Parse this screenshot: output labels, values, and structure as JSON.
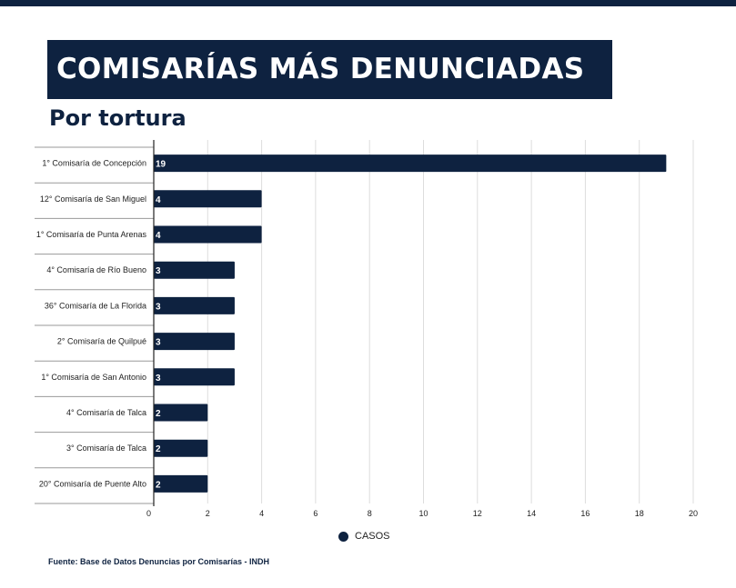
{
  "header": {
    "title": "COMISARÍAS MÁS DENUNCIADAS",
    "subtitle": "Por tortura"
  },
  "colors": {
    "bar": "#0e2240",
    "grid": "#dddddd",
    "axis": "#222222",
    "text": "#222222",
    "label_text": "#ffffff"
  },
  "legend": {
    "label": "CASOS",
    "position": "bottom"
  },
  "source": "Fuente: Base de Datos Denuncias por Comisarías - INDH",
  "chart_data": {
    "type": "bar",
    "orientation": "horizontal",
    "categories": [
      "1° Comisaría de Concepción",
      "12° Comisaría de San Miguel",
      "1° Comisaría de Punta Arenas",
      "4° Comisaría de Río Bueno",
      "36° Comisaría de La Florida",
      "2° Comisaría de Quilpué",
      "1° Comisaría de San Antonio",
      "4° Comisaría de Talca",
      "3° Comisaría de Talca",
      "20° Comisaría de Puente Alto"
    ],
    "series": [
      {
        "name": "CASOS",
        "values": [
          19,
          4,
          4,
          3,
          3,
          3,
          3,
          2,
          2,
          2
        ]
      }
    ],
    "xlim": [
      0,
      20
    ],
    "xticks": [
      0,
      2,
      4,
      6,
      8,
      10,
      12,
      14,
      16,
      18,
      20
    ],
    "grid": true,
    "data_labels": true
  }
}
